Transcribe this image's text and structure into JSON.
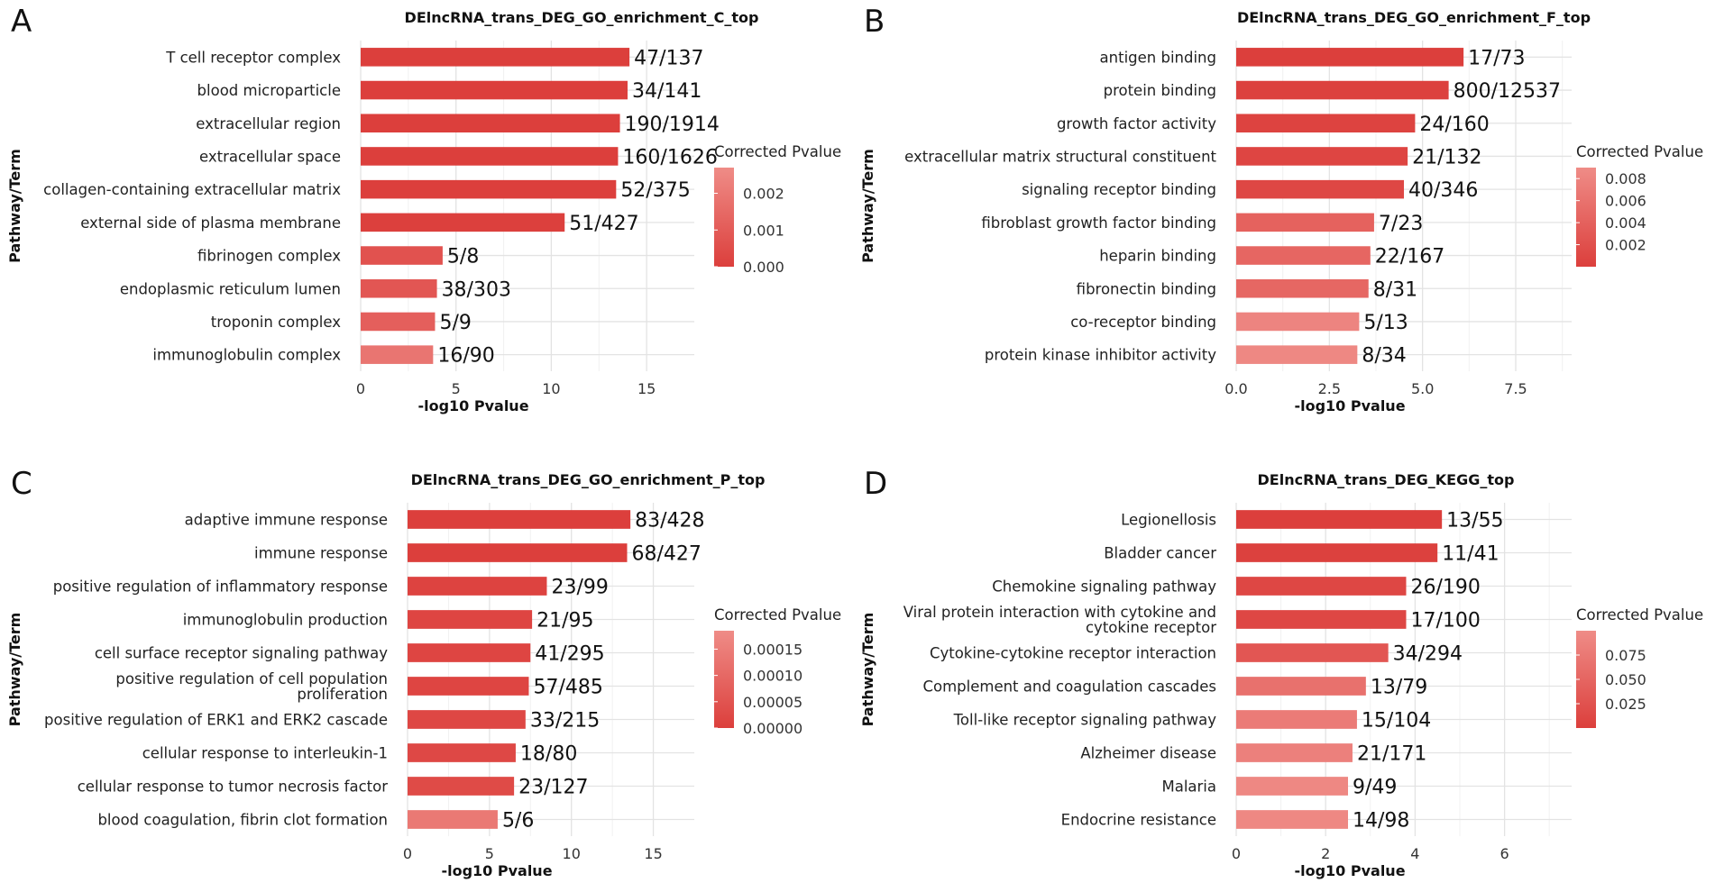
{
  "figure": {
    "panels": [
      "A",
      "B",
      "C",
      "D"
    ],
    "ylabel": "Pathway/Term",
    "xlabel": "-log10 Pvalue",
    "legend_title": "Corrected Pvalue",
    "colors": {
      "bar_dark": "#dc3f3c",
      "bar_light": "#ef8c87",
      "grid": "#e3e3e3"
    }
  },
  "chart_data": [
    {
      "panel": "A",
      "type": "bar",
      "orientation": "horizontal",
      "title": "DElncRNA_trans_DEG_GO_enrichment_C_top",
      "xlabel": "-log10 Pvalue",
      "ylabel": "Pathway/Term",
      "categories": [
        "T cell receptor complex",
        "blood microparticle",
        "extracellular region",
        "extracellular space",
        "collagen-containing extracellular matrix",
        "external side of plasma membrane",
        "fibrinogen complex",
        "endoplasmic reticulum lumen",
        "troponin complex",
        "immunoglobulin complex"
      ],
      "values": [
        14.1,
        14.0,
        13.6,
        13.5,
        13.4,
        10.7,
        4.3,
        4.0,
        3.9,
        3.8
      ],
      "labels": [
        "47/137",
        "34/141",
        "190/1914",
        "160/1626",
        "52/375",
        "51/427",
        "5/8",
        "38/303",
        "5/9",
        "16/90"
      ],
      "pvalue_fraction": [
        0.0,
        0.0,
        0.0,
        0.0,
        0.0,
        0.01,
        0.25,
        0.3,
        0.42,
        0.7
      ],
      "xlim": [
        0,
        17.5
      ],
      "xticks": [
        0,
        5,
        10,
        15
      ],
      "xtick_labels": [
        "0",
        "5",
        "10",
        "15"
      ],
      "legend": {
        "title": "Corrected Pvalue",
        "ticks": [
          "0.002",
          "0.001",
          "0.000"
        ],
        "range": [
          0,
          0.0027
        ]
      }
    },
    {
      "panel": "B",
      "type": "bar",
      "orientation": "horizontal",
      "title": "DElncRNA_trans_DEG_GO_enrichment_F_top",
      "xlabel": "-log10 Pvalue",
      "ylabel": "Pathway/Term",
      "categories": [
        "antigen binding",
        "protein binding",
        "growth factor activity",
        "extracellular matrix structural constituent",
        "signaling receptor binding",
        "fibroblast growth factor binding",
        "heparin binding",
        "fibronectin binding",
        "co-receptor binding",
        "protein kinase inhibitor activity"
      ],
      "values": [
        6.1,
        5.7,
        4.8,
        4.6,
        4.5,
        3.7,
        3.6,
        3.55,
        3.3,
        3.25
      ],
      "labels": [
        "17/73",
        "800/12537",
        "24/160",
        "21/132",
        "40/346",
        "7/23",
        "22/167",
        "8/31",
        "5/13",
        "8/34"
      ],
      "pvalue_fraction": [
        0.0,
        0.02,
        0.05,
        0.08,
        0.1,
        0.45,
        0.5,
        0.52,
        0.9,
        0.95
      ],
      "xlim": [
        0,
        9
      ],
      "xticks": [
        0,
        2.5,
        5,
        7.5
      ],
      "xtick_labels": [
        "0.0",
        "2.5",
        "5.0",
        "7.5"
      ],
      "legend": {
        "title": "Corrected Pvalue",
        "ticks": [
          "0.008",
          "0.006",
          "0.004",
          "0.002"
        ],
        "range": [
          0,
          0.009
        ]
      }
    },
    {
      "panel": "C",
      "type": "bar",
      "orientation": "horizontal",
      "title": "DElncRNA_trans_DEG_GO_enrichment_P_top",
      "xlabel": "-log10 Pvalue",
      "ylabel": "Pathway/Term",
      "categories": [
        "adaptive immune response",
        "immune response",
        "positive regulation of inflammatory response",
        "immunoglobulin production",
        "cell surface receptor signaling pathway",
        "positive regulation of cell population proliferation",
        "positive regulation of ERK1 and ERK2 cascade",
        "cellular response to interleukin-1",
        "cellular response to tumor necrosis factor",
        "blood coagulation, fibrin clot formation"
      ],
      "values": [
        13.6,
        13.4,
        8.5,
        7.6,
        7.5,
        7.4,
        7.2,
        6.6,
        6.5,
        5.5
      ],
      "labels": [
        "83/428",
        "68/427",
        "23/99",
        "21/95",
        "41/295",
        "57/485",
        "33/215",
        "18/80",
        "23/127",
        "5/6"
      ],
      "pvalue_fraction": [
        0.0,
        0.0,
        0.05,
        0.08,
        0.08,
        0.08,
        0.1,
        0.12,
        0.15,
        0.75
      ],
      "xlim": [
        0,
        17.5
      ],
      "xticks": [
        0,
        5,
        10,
        15
      ],
      "xtick_labels": [
        "0",
        "5",
        "10",
        "15"
      ],
      "legend": {
        "title": "Corrected Pvalue",
        "ticks": [
          "0.00015",
          "0.00010",
          "0.00005",
          "0.00000"
        ],
        "range": [
          0,
          0.000185
        ]
      }
    },
    {
      "panel": "D",
      "type": "bar",
      "orientation": "horizontal",
      "title": "DElncRNA_trans_DEG_KEGG_top",
      "xlabel": "-log10 Pvalue",
      "ylabel": "Pathway/Term",
      "categories": [
        "Legionellosis",
        "Bladder cancer",
        "Chemokine signaling pathway",
        "Viral protein interaction with cytokine and cytokine receptor",
        "Cytokine-cytokine receptor interaction",
        "Complement and coagulation cascades",
        "Toll-like receptor signaling pathway",
        "Alzheimer disease",
        "Malaria",
        "Endocrine resistance"
      ],
      "values": [
        4.6,
        4.5,
        3.8,
        3.8,
        3.4,
        2.9,
        2.7,
        2.6,
        2.5,
        2.5
      ],
      "labels": [
        "13/55",
        "11/41",
        "26/190",
        "17/100",
        "34/294",
        "13/79",
        "15/104",
        "21/171",
        "9/49",
        "14/98"
      ],
      "pvalue_fraction": [
        0.0,
        0.02,
        0.1,
        0.1,
        0.3,
        0.65,
        0.78,
        0.85,
        0.95,
        0.95
      ],
      "xlim": [
        0,
        7.5
      ],
      "xticks": [
        0,
        2,
        4,
        6
      ],
      "xtick_labels": [
        "0",
        "2",
        "4",
        "6"
      ],
      "legend": {
        "title": "Corrected Pvalue",
        "ticks": [
          "0.075",
          "0.050",
          "0.025"
        ],
        "range": [
          0,
          0.1
        ]
      }
    }
  ]
}
